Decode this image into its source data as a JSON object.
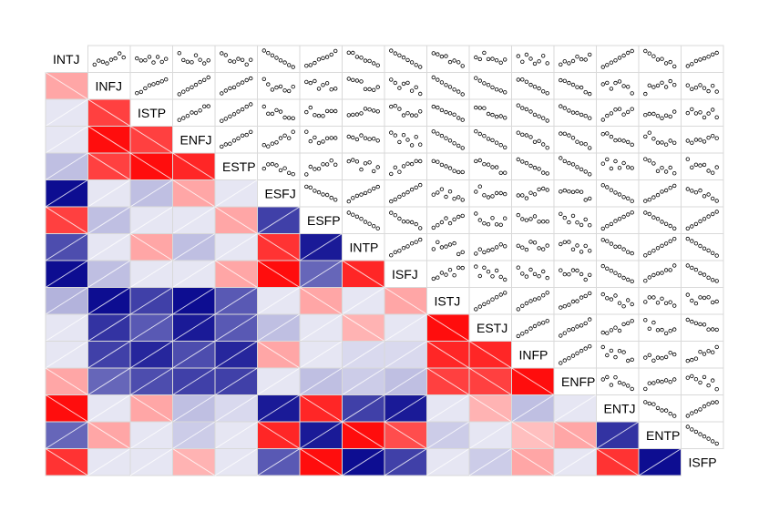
{
  "chart_data": {
    "type": "heatmap",
    "title": "",
    "variables": [
      "INTJ",
      "INFJ",
      "ISTP",
      "ENFJ",
      "ESTP",
      "ESFJ",
      "ESFP",
      "INTP",
      "ISFJ",
      "ISTJ",
      "ESTJ",
      "INFP",
      "ENFP",
      "ENTJ",
      "ENTP",
      "ISFP"
    ],
    "lower_panel": "shade",
    "upper_panel": "pts",
    "diagonal_panel": "labels",
    "value_range": [
      -1,
      1
    ],
    "colors": {
      "negative": "#00008B",
      "zero": "#FFFFFF",
      "positive": "#FF0000",
      "grid": "#D9D9D9",
      "hatch": "#FFFFFF"
    },
    "correlations_lower": [
      [],
      [
        0.35
      ],
      [
        -0.1,
        0.75
      ],
      [
        -0.1,
        0.95,
        0.75
      ],
      [
        -0.25,
        0.75,
        0.95,
        0.85
      ],
      [
        -0.95,
        -0.1,
        -0.25,
        0.35,
        -0.1
      ],
      [
        0.75,
        -0.25,
        -0.1,
        -0.1,
        0.35,
        -0.75
      ],
      [
        -0.7,
        -0.1,
        0.35,
        -0.25,
        -0.1,
        0.8,
        -0.9
      ],
      [
        -0.95,
        -0.25,
        -0.1,
        -0.1,
        0.35,
        0.95,
        -0.6,
        0.85
      ],
      [
        -0.3,
        -0.95,
        -0.75,
        -0.95,
        -0.65,
        -0.1,
        0.35,
        -0.1,
        0.35
      ],
      [
        -0.1,
        -0.8,
        -0.65,
        -0.9,
        -0.65,
        -0.25,
        -0.1,
        0.3,
        -0.1,
        0.95
      ],
      [
        -0.1,
        -0.75,
        -0.85,
        -0.7,
        -0.85,
        0.35,
        -0.1,
        -0.15,
        -0.15,
        0.85,
        0.85
      ],
      [
        0.35,
        -0.6,
        -0.7,
        -0.75,
        -0.75,
        -0.1,
        -0.25,
        -0.2,
        -0.25,
        0.75,
        0.75,
        0.95
      ],
      [
        0.95,
        -0.1,
        0.35,
        -0.25,
        -0.15,
        -0.9,
        0.85,
        -0.75,
        -0.9,
        -0.1,
        0.3,
        -0.25,
        -0.1
      ],
      [
        -0.6,
        0.35,
        -0.1,
        -0.2,
        -0.1,
        0.85,
        -0.9,
        0.95,
        0.7,
        -0.2,
        -0.1,
        0.25,
        0.35,
        -0.8
      ],
      [
        0.8,
        -0.1,
        -0.1,
        0.3,
        -0.1,
        -0.65,
        0.95,
        -0.95,
        -0.75,
        -0.1,
        -0.2,
        0.35,
        -0.1,
        0.8,
        -0.95
      ]
    ]
  }
}
